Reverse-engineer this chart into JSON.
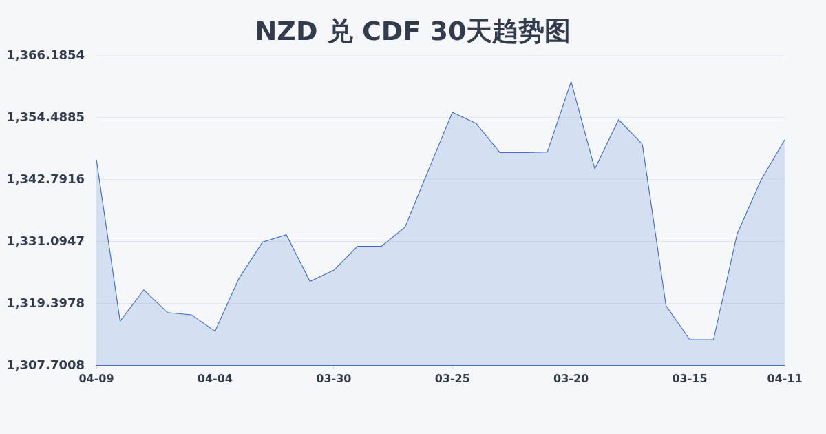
{
  "chart_data": {
    "type": "area",
    "title": "NZD 兑 CDF 30天趋势图",
    "categories": [
      "04-09",
      null,
      null,
      null,
      null,
      "04-04",
      null,
      null,
      null,
      null,
      "03-30",
      null,
      null,
      null,
      null,
      "03-25",
      null,
      null,
      null,
      null,
      "03-20",
      null,
      null,
      null,
      null,
      "03-15",
      null,
      null,
      null,
      "04-11"
    ],
    "values": [
      1346.5,
      1316.0,
      1321.9,
      1317.6,
      1317.2,
      1314.1,
      1324.0,
      1330.9,
      1332.3,
      1323.5,
      1325.6,
      1330.1,
      1330.1,
      1333.7,
      1344.6,
      1355.4,
      1353.3,
      1347.8,
      1347.8,
      1347.9,
      1361.2,
      1344.7,
      1354.0,
      1349.4,
      1318.9,
      1312.5,
      1312.5,
      1332.5,
      1342.6,
      1350.2
    ],
    "color": "#3a68cc",
    "ylim": [
      1307.7008,
      1366.1854
    ],
    "yticks": [
      {
        "value": 1307.7008,
        "label": "1,307.7008"
      },
      {
        "value": 1319.3978,
        "label": "1,319.3978"
      },
      {
        "value": 1331.0947,
        "label": "1,331.0947"
      },
      {
        "value": 1342.7916,
        "label": "1,342.7916"
      },
      {
        "value": 1354.4885,
        "label": "1,354.4885"
      },
      {
        "value": 1366.1854,
        "label": "1,366.1854"
      }
    ],
    "grid": "y"
  }
}
